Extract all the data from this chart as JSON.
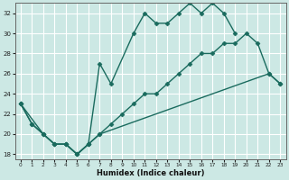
{
  "xlabel": "Humidex (Indice chaleur)",
  "bg_color": "#cce8e4",
  "grid_color": "#ffffff",
  "line_color": "#1a6b5e",
  "xlim": [
    -0.5,
    23.5
  ],
  "ylim": [
    17.5,
    33.0
  ],
  "yticks": [
    18,
    20,
    22,
    24,
    26,
    28,
    30,
    32
  ],
  "xticks": [
    0,
    1,
    2,
    3,
    4,
    5,
    6,
    7,
    8,
    9,
    10,
    11,
    12,
    13,
    14,
    15,
    16,
    17,
    18,
    19,
    20,
    21,
    22,
    23
  ],
  "series1_x": [
    0,
    1,
    2,
    3,
    4,
    5,
    6,
    7,
    8,
    10,
    11,
    12,
    13,
    14,
    15,
    16,
    17,
    18,
    19
  ],
  "series1_y": [
    23,
    21,
    20,
    19,
    19,
    18,
    19,
    27,
    25,
    30,
    32,
    31,
    31,
    32,
    33,
    32,
    33,
    32,
    30
  ],
  "series2_x": [
    0,
    1,
    2,
    3,
    4,
    5,
    6,
    7,
    22,
    23
  ],
  "series2_y": [
    23,
    21,
    20,
    19,
    19,
    18,
    19,
    20,
    26,
    25
  ],
  "series3_x": [
    0,
    2,
    3,
    4,
    5,
    6,
    7,
    8,
    9,
    10,
    11,
    12,
    13,
    14,
    15,
    16,
    17,
    18,
    19,
    20,
    21,
    22,
    23
  ],
  "series3_y": [
    23,
    20,
    19,
    19,
    18,
    19,
    20,
    21,
    22,
    23,
    24,
    24,
    25,
    26,
    27,
    28,
    28,
    29,
    29,
    30,
    29,
    26,
    25
  ],
  "marker": "D",
  "markersize": 2.5,
  "linewidth": 1.0
}
